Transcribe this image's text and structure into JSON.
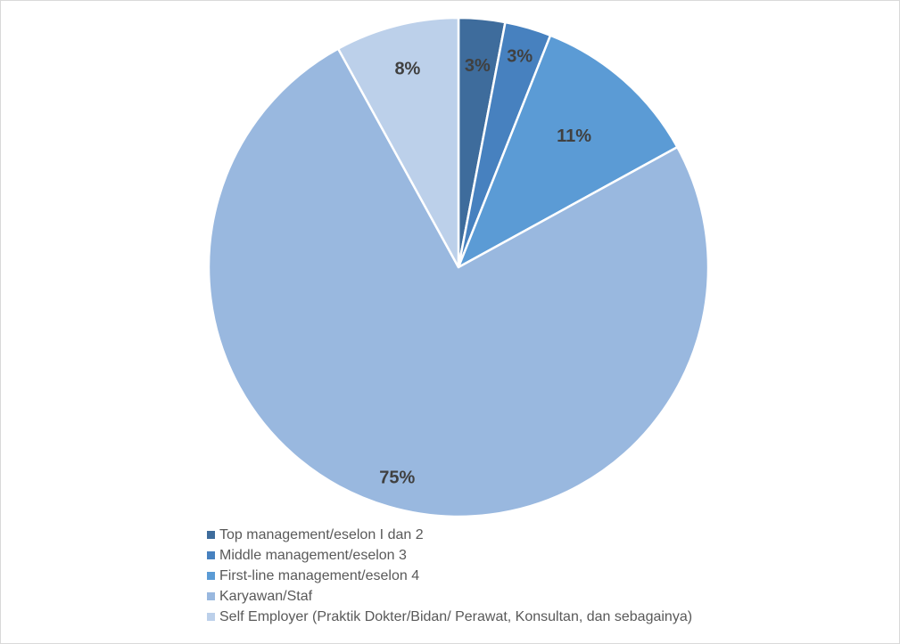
{
  "chart_data": {
    "type": "pie",
    "title": "",
    "slices": [
      {
        "label": "Top management/eselon I dan 2",
        "value": 3,
        "display": "3%",
        "color": "#3e6c9c"
      },
      {
        "label": "Middle management/eselon 3",
        "value": 3,
        "display": "3%",
        "color": "#4781bf"
      },
      {
        "label": "First-line management/eselon 4",
        "value": 11,
        "display": "11%",
        "color": "#5b9bd5"
      },
      {
        "label": "Karyawan/Staf",
        "value": 75,
        "display": "75%",
        "color": "#99b8df"
      },
      {
        "label": "Self Employer (Praktik Dokter/Bidan/ Perawat, Konsultan, dan sebagainya)",
        "value": 8,
        "display": "8%",
        "color": "#bcd0ea"
      }
    ],
    "start_angle": "12 o'clock",
    "direction": "clockwise",
    "legend_position": "bottom-left"
  }
}
